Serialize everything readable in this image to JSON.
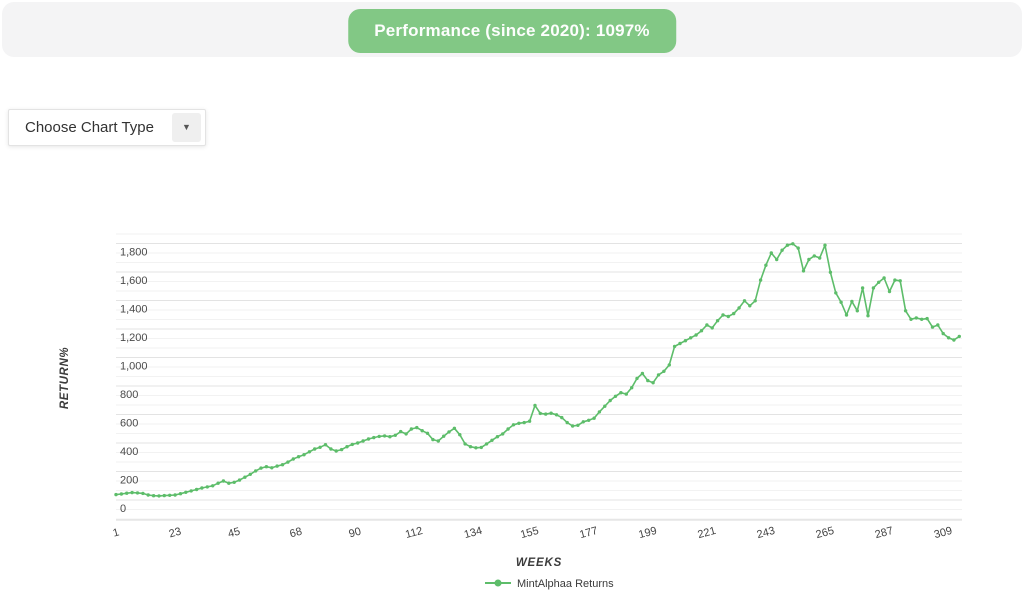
{
  "header": {
    "performance_label": "Performance (since 2020): 1097%"
  },
  "controls": {
    "chart_type_label": "Choose Chart Type",
    "dropdown_arrow": "▼"
  },
  "colors": {
    "accent_green": "#82c885",
    "line_green": "#5dbd6a",
    "topbar_bg": "#f4f4f5",
    "grid_major": "#e3e3e3",
    "grid_minor": "#f2f2f2",
    "axis_line": "#d9d9d9"
  },
  "chart_data": {
    "type": "line",
    "title": "Performance (since 2020): 1097%",
    "xlabel": "WEEKS",
    "ylabel": "RETURN%",
    "legend_position": "bottom",
    "grid": true,
    "x_ticks": [
      1,
      23,
      45,
      68,
      90,
      112,
      134,
      155,
      177,
      199,
      221,
      243,
      265,
      287,
      309
    ],
    "y_ticks": [
      0,
      200,
      400,
      600,
      800,
      1000,
      1200,
      1400,
      1600,
      1800
    ],
    "xlim": [
      1,
      316
    ],
    "ylim": [
      -140,
      1880
    ],
    "series": [
      {
        "name": "MintAlphaa Returns",
        "color": "#5dbd6a",
        "points": [
          [
            1,
            38
          ],
          [
            3,
            42
          ],
          [
            5,
            48
          ],
          [
            7,
            52
          ],
          [
            9,
            50
          ],
          [
            11,
            46
          ],
          [
            13,
            35
          ],
          [
            15,
            30
          ],
          [
            17,
            29
          ],
          [
            19,
            31
          ],
          [
            21,
            33
          ],
          [
            23,
            35
          ],
          [
            25,
            44
          ],
          [
            27,
            54
          ],
          [
            29,
            64
          ],
          [
            31,
            74
          ],
          [
            33,
            84
          ],
          [
            35,
            92
          ],
          [
            37,
            100
          ],
          [
            39,
            118
          ],
          [
            41,
            133
          ],
          [
            43,
            118
          ],
          [
            45,
            124
          ],
          [
            47,
            140
          ],
          [
            49,
            160
          ],
          [
            51,
            180
          ],
          [
            53,
            204
          ],
          [
            55,
            224
          ],
          [
            57,
            234
          ],
          [
            59,
            226
          ],
          [
            61,
            238
          ],
          [
            63,
            248
          ],
          [
            65,
            266
          ],
          [
            67,
            288
          ],
          [
            69,
            304
          ],
          [
            71,
            318
          ],
          [
            73,
            338
          ],
          [
            75,
            358
          ],
          [
            77,
            370
          ],
          [
            79,
            388
          ],
          [
            81,
            358
          ],
          [
            83,
            344
          ],
          [
            85,
            354
          ],
          [
            87,
            374
          ],
          [
            89,
            390
          ],
          [
            91,
            400
          ],
          [
            93,
            414
          ],
          [
            95,
            428
          ],
          [
            97,
            438
          ],
          [
            99,
            446
          ],
          [
            101,
            450
          ],
          [
            103,
            444
          ],
          [
            105,
            454
          ],
          [
            107,
            480
          ],
          [
            109,
            464
          ],
          [
            111,
            498
          ],
          [
            113,
            508
          ],
          [
            115,
            486
          ],
          [
            117,
            468
          ],
          [
            119,
            424
          ],
          [
            121,
            414
          ],
          [
            123,
            448
          ],
          [
            125,
            478
          ],
          [
            127,
            503
          ],
          [
            129,
            458
          ],
          [
            131,
            394
          ],
          [
            133,
            374
          ],
          [
            135,
            366
          ],
          [
            137,
            369
          ],
          [
            139,
            394
          ],
          [
            141,
            419
          ],
          [
            143,
            444
          ],
          [
            145,
            464
          ],
          [
            147,
            498
          ],
          [
            149,
            528
          ],
          [
            151,
            538
          ],
          [
            153,
            543
          ],
          [
            155,
            553
          ],
          [
            157,
            664
          ],
          [
            159,
            608
          ],
          [
            161,
            603
          ],
          [
            163,
            609
          ],
          [
            165,
            598
          ],
          [
            167,
            578
          ],
          [
            169,
            543
          ],
          [
            171,
            519
          ],
          [
            173,
            524
          ],
          [
            175,
            549
          ],
          [
            177,
            559
          ],
          [
            179,
            574
          ],
          [
            181,
            618
          ],
          [
            183,
            658
          ],
          [
            185,
            698
          ],
          [
            187,
            728
          ],
          [
            189,
            753
          ],
          [
            191,
            743
          ],
          [
            193,
            788
          ],
          [
            195,
            853
          ],
          [
            197,
            888
          ],
          [
            199,
            838
          ],
          [
            201,
            823
          ],
          [
            203,
            878
          ],
          [
            205,
            903
          ],
          [
            207,
            948
          ],
          [
            209,
            1078
          ],
          [
            211,
            1098
          ],
          [
            213,
            1118
          ],
          [
            215,
            1138
          ],
          [
            217,
            1158
          ],
          [
            219,
            1188
          ],
          [
            221,
            1228
          ],
          [
            223,
            1208
          ],
          [
            225,
            1258
          ],
          [
            227,
            1298
          ],
          [
            229,
            1288
          ],
          [
            231,
            1308
          ],
          [
            233,
            1348
          ],
          [
            235,
            1398
          ],
          [
            237,
            1363
          ],
          [
            239,
            1398
          ],
          [
            241,
            1543
          ],
          [
            243,
            1648
          ],
          [
            245,
            1733
          ],
          [
            247,
            1688
          ],
          [
            249,
            1753
          ],
          [
            251,
            1788
          ],
          [
            253,
            1798
          ],
          [
            255,
            1768
          ],
          [
            257,
            1608
          ],
          [
            259,
            1688
          ],
          [
            261,
            1713
          ],
          [
            263,
            1698
          ],
          [
            265,
            1788
          ],
          [
            267,
            1598
          ],
          [
            269,
            1453
          ],
          [
            271,
            1388
          ],
          [
            273,
            1298
          ],
          [
            275,
            1393
          ],
          [
            277,
            1328
          ],
          [
            279,
            1488
          ],
          [
            281,
            1293
          ],
          [
            283,
            1488
          ],
          [
            285,
            1528
          ],
          [
            287,
            1558
          ],
          [
            289,
            1463
          ],
          [
            291,
            1543
          ],
          [
            293,
            1538
          ],
          [
            295,
            1328
          ],
          [
            297,
            1268
          ],
          [
            299,
            1278
          ],
          [
            301,
            1268
          ],
          [
            303,
            1273
          ],
          [
            305,
            1213
          ],
          [
            307,
            1228
          ],
          [
            309,
            1168
          ],
          [
            311,
            1138
          ],
          [
            313,
            1123
          ],
          [
            315,
            1148
          ]
        ]
      }
    ]
  }
}
